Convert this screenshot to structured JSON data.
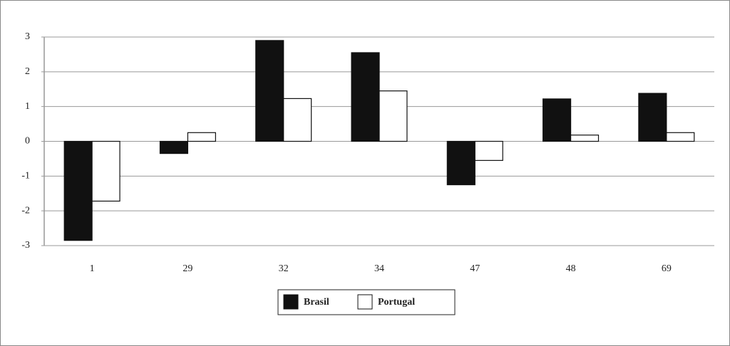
{
  "chart_data": {
    "type": "bar",
    "categories": [
      "1",
      "29",
      "32",
      "34",
      "47",
      "48",
      "69"
    ],
    "series": [
      {
        "name": "Brasil",
        "color": "#111111",
        "values": [
          -2.85,
          -0.35,
          2.9,
          2.55,
          -1.25,
          1.22,
          1.38
        ]
      },
      {
        "name": "Portugal",
        "color": "#ffffff",
        "values": [
          -1.72,
          0.25,
          1.23,
          1.45,
          -0.55,
          0.18,
          0.25
        ]
      }
    ],
    "ylim": [
      -3,
      3
    ],
    "yticks": [
      -3,
      -2,
      -1,
      0,
      1,
      2,
      3
    ],
    "grid": true,
    "legend": "bottom"
  }
}
